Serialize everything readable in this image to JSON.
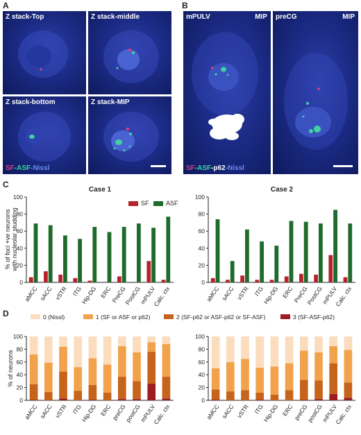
{
  "panelA": {
    "letter": "A",
    "tiles": [
      "Z stack-Top",
      "Z stack-middle",
      "Z stack-bottom",
      "Z stack-MIP"
    ],
    "legend": {
      "sf": "SF",
      "asf": "-ASF",
      "nissl": "-Nissl"
    }
  },
  "panelB": {
    "letter": "B",
    "tiles": [
      {
        "label": "mPULV",
        "mip": "MIP"
      },
      {
        "label": "preCG",
        "mip": "MIP"
      }
    ],
    "legend": {
      "sf": "SF",
      "asf": "-ASF",
      "p62": "-p62",
      "nissl": "-Nissl"
    }
  },
  "panelC": {
    "letter": "C"
  },
  "panelD": {
    "letter": "D"
  },
  "colors": {
    "sf": "#b5232a",
    "asf": "#1e6b2b",
    "d0": "#fbdcbc",
    "d1": "#f1a24b",
    "d2": "#c6641c",
    "d3": "#9c1c22",
    "legend_sf": "#e0407a",
    "legend_asf": "#3fd3a0",
    "legend_p62": "#ffffff",
    "legend_nissl": "#6c8df0"
  },
  "chart_data": [
    {
      "type": "bar",
      "title": "Case 1",
      "ylabel": "% of foci +ve neurons with nucleolar studding",
      "ylim": [
        0,
        100
      ],
      "yticks": [
        0,
        20,
        40,
        60,
        80,
        100
      ],
      "categories": [
        "aMCC",
        "sACC",
        "vSTR",
        "ITG",
        "Hip-DG",
        "ERC",
        "PreCG",
        "PostCG",
        "mPULV",
        "Calc. ctx"
      ],
      "series": [
        {
          "name": "SF",
          "values": [
            6,
            13,
            9,
            5,
            2,
            0,
            7,
            0,
            25,
            3
          ]
        },
        {
          "name": "ASF",
          "values": [
            69,
            67,
            55,
            51,
            65,
            59,
            65,
            69,
            64,
            77
          ]
        }
      ],
      "legend": [
        "SF",
        "ASF"
      ]
    },
    {
      "type": "bar",
      "title": "Case 2",
      "ylim": [
        0,
        100
      ],
      "yticks": [
        0,
        20,
        40,
        60,
        80,
        100
      ],
      "categories": [
        "aMCC",
        "sACC",
        "vSTR",
        "ITG",
        "Hip-DG",
        "ERC",
        "PreCG",
        "PostCG",
        "mPULV",
        "Calc. ctx"
      ],
      "series": [
        {
          "name": "SF",
          "values": [
            5,
            3,
            8,
            3,
            3,
            7,
            10,
            9,
            32,
            6
          ]
        },
        {
          "name": "ASF",
          "values": [
            74,
            25,
            62,
            48,
            43,
            72,
            71,
            69,
            85,
            69
          ]
        }
      ]
    },
    {
      "type": "bar",
      "stacked": true,
      "ylabel": "% of neurons",
      "ylim": [
        0,
        100
      ],
      "yticks": [
        0,
        20,
        40,
        60,
        80,
        100
      ],
      "categories": [
        "aMCC",
        "sACC",
        "vSTR",
        "ITG",
        "Hip-DG",
        "ERC",
        "preCG",
        "postCG",
        "mPULV",
        "Calc. ctx"
      ],
      "series": [
        {
          "name": "0 (Nissl)",
          "values": [
            28,
            41,
            16,
            48,
            34,
            44,
            15,
            25,
            9,
            12
          ]
        },
        {
          "name": "1 (SF or ASF or p62)",
          "values": [
            47,
            46,
            39,
            37,
            42,
            44,
            48,
            45,
            15,
            51
          ]
        },
        {
          "name": "2 (SF-p62 or ASF-p62 or SF-ASF)",
          "values": [
            24,
            13,
            42,
            15,
            23,
            12,
            35,
            28,
            50,
            34
          ]
        },
        {
          "name": "3 (SF-ASF-p62)",
          "values": [
            1,
            0,
            3,
            0,
            1,
            0,
            2,
            2,
            26,
            3
          ]
        }
      ]
    },
    {
      "type": "bar",
      "stacked": true,
      "ylim": [
        0,
        100
      ],
      "yticks": [
        0,
        20,
        40,
        60,
        80,
        100
      ],
      "categories": [
        "aMCC",
        "sACC",
        "vSTR",
        "ITG",
        "Hip-DG",
        "ERC",
        "preCG",
        "postCG",
        "mPULV",
        "Calc. ctx"
      ],
      "series": [
        {
          "name": "0 (Nissl)",
          "values": [
            50,
            40,
            35,
            49,
            47,
            42,
            22,
            25,
            15,
            21
          ]
        },
        {
          "name": "1 (SF or ASF or p62)",
          "values": [
            33,
            46,
            49,
            39,
            44,
            42,
            46,
            44,
            27,
            51
          ]
        },
        {
          "name": "2 (SF-p62 or ASF-p62 or SF-ASF)",
          "values": [
            16,
            14,
            16,
            11,
            9,
            16,
            31,
            29,
            48,
            24
          ]
        },
        {
          "name": "3 (SF-ASF-p62)",
          "values": [
            1,
            0,
            0,
            1,
            0,
            0,
            1,
            2,
            10,
            4
          ]
        }
      ]
    }
  ]
}
